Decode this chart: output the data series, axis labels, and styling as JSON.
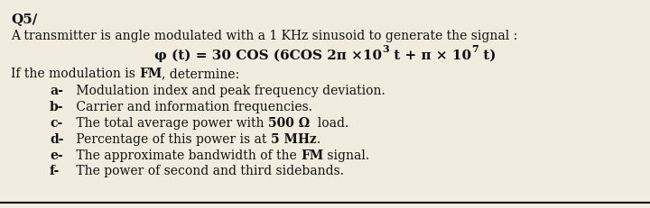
{
  "bg_color": "#f0ece0",
  "text_color": "#111111",
  "figsize": [
    7.2,
    2.32
  ],
  "dpi": 100,
  "title": "Q5/",
  "line1": "A transmitter is angle modulated with a 1 KHz sinusoid to generate the signal :",
  "eq_part1": "φ (t) = 30 COS (6COS 2π ×10",
  "eq_sup1": "3",
  "eq_part2": " t + π × 10",
  "eq_sup2": "7",
  "eq_part3": " t)",
  "line3_pre": "If the modulation is ",
  "line3_bold": "FM",
  "line3_post": ", determine:",
  "items": [
    {
      "label": "a-",
      "segments": [
        {
          "text": " Modulation index and peak frequency deviation.",
          "bold": false
        }
      ]
    },
    {
      "label": "b-",
      "segments": [
        {
          "text": " Carrier and information frequencies.",
          "bold": false
        }
      ]
    },
    {
      "label": "c-",
      "segments": [
        {
          "text": " The total average power with ",
          "bold": false
        },
        {
          "text": "500 Ω",
          "bold": true
        },
        {
          "text": "  load.",
          "bold": false
        }
      ]
    },
    {
      "label": "d-",
      "segments": [
        {
          "text": " Percentage of this power is at ",
          "bold": false
        },
        {
          "text": "5 MHz",
          "bold": true
        },
        {
          "text": ".",
          "bold": false
        }
      ]
    },
    {
      "label": "e-",
      "segments": [
        {
          "text": " The approximate bandwidth of the ",
          "bold": false
        },
        {
          "text": "FM",
          "bold": true
        },
        {
          "text": " signal.",
          "bold": false
        }
      ]
    },
    {
      "label": "f-",
      "segments": [
        {
          "text": " The power of second and third sidebands.",
          "bold": false
        }
      ]
    }
  ]
}
